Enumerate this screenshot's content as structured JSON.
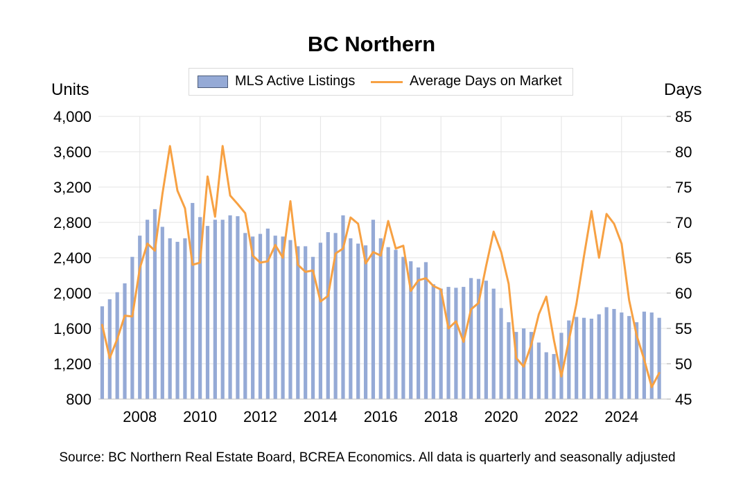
{
  "chart_data": {
    "type": "bar+line",
    "title": "BC Northern",
    "legend": {
      "position": "top-center",
      "entries": [
        "MLS Active Listings",
        "Average Days on Market"
      ]
    },
    "y_left": {
      "label": "Units",
      "range": [
        800,
        4000
      ],
      "ticks": [
        "800",
        "1,200",
        "1,600",
        "2,000",
        "2,400",
        "2,800",
        "3,200",
        "3,600",
        "4,000"
      ]
    },
    "y_right": {
      "label": "Days",
      "range": [
        45,
        85
      ],
      "ticks": [
        "45",
        "50",
        "55",
        "60",
        "65",
        "70",
        "75",
        "80",
        "85"
      ]
    },
    "x": {
      "start_year": 2006.75,
      "step": 0.25,
      "tick_labels": [
        "2008",
        "2010",
        "2012",
        "2014",
        "2016",
        "2018",
        "2020",
        "2022",
        "2024"
      ]
    },
    "grid": true,
    "series": [
      {
        "name": "MLS Active Listings",
        "type": "bar",
        "axis": "left",
        "color": "#95aad6",
        "values": [
          1850,
          1930,
          2010,
          2110,
          2410,
          2650,
          2830,
          2950,
          2750,
          2620,
          2580,
          2620,
          3020,
          2860,
          2760,
          2830,
          2830,
          2880,
          2870,
          2680,
          2640,
          2670,
          2730,
          2650,
          2640,
          2600,
          2530,
          2530,
          2410,
          2570,
          2690,
          2680,
          2880,
          2620,
          2560,
          2540,
          2830,
          2620,
          2520,
          2490,
          2410,
          2360,
          2290,
          2350,
          2100,
          2050,
          2070,
          2060,
          2070,
          2170,
          2160,
          2140,
          2050,
          1830,
          1670,
          1560,
          1600,
          1560,
          1440,
          1330,
          1310,
          1550,
          1690,
          1730,
          1720,
          1710,
          1760,
          1840,
          1820,
          1780,
          1740,
          1670,
          1790,
          1780,
          1720
        ]
      },
      {
        "name": "Average Days on Market",
        "type": "line",
        "axis": "right",
        "color": "#f7a143",
        "values": [
          55.5,
          50.8,
          53.5,
          56.8,
          56.7,
          63.5,
          67.0,
          66.0,
          74.0,
          80.8,
          74.5,
          72.0,
          64.0,
          64.3,
          76.5,
          70.8,
          80.8,
          73.8,
          72.6,
          71.3,
          65.3,
          64.3,
          64.5,
          66.8,
          65.0,
          73.0,
          64.0,
          63.0,
          63.2,
          58.8,
          59.6,
          65.6,
          66.3,
          70.7,
          69.8,
          64.2,
          65.8,
          65.3,
          70.2,
          66.3,
          66.7,
          60.3,
          61.8,
          62.1,
          61.0,
          60.5,
          55.0,
          56.0,
          53.1,
          57.7,
          58.6,
          63.8,
          68.7,
          65.8,
          61.3,
          50.8,
          49.6,
          52.7,
          57.0,
          59.5,
          53.4,
          48.2,
          53.3,
          58.5,
          65.2,
          71.6,
          65.0,
          71.2,
          69.8,
          67.0,
          59.0,
          54.0,
          50.6,
          46.7,
          48.7
        ]
      }
    ],
    "source": "Source: BC Northern Real Estate Board, BCREA Economics. All data is quarterly and seasonally adjusted"
  }
}
